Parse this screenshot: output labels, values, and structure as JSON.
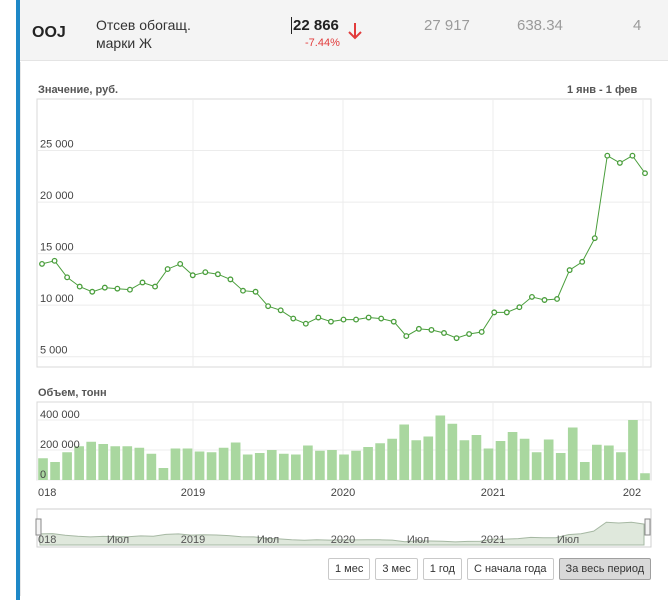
{
  "row": {
    "ticker": "OOJ",
    "name_line1": "Отсев обогащ.",
    "name_line2": "марки Ж",
    "price": "22 866",
    "change": "-7.44%",
    "col1": "27 917",
    "col2": "638.34",
    "col3": "4",
    "down_color": "#e23b3b",
    "arrow_icon": "arrow-down-icon"
  },
  "panel": {
    "price_label": "Значение, руб.",
    "range_label": "1 янв - 1 фев",
    "volume_label": "Объем, тонн"
  },
  "navigator_labels": [
    "018",
    "Июл",
    "2019",
    "Июл",
    "2020",
    "Июл",
    "2021",
    "Июл"
  ],
  "buttons": [
    {
      "label": "1 мес",
      "active": false
    },
    {
      "label": "3 мес",
      "active": false
    },
    {
      "label": "1 год",
      "active": false
    },
    {
      "label": "С начала года",
      "active": false
    },
    {
      "label": "За весь период",
      "active": true
    }
  ],
  "chart_data": [
    {
      "type": "line",
      "ylabel": "Значение, руб.",
      "ylim": [
        4000,
        30000
      ],
      "y_ticks": [
        "5 000",
        "10 000",
        "15 000",
        "20 000",
        "25 000"
      ],
      "x_ticks": [
        "018",
        "2019",
        "2020",
        "2021",
        "202"
      ],
      "series": [
        {
          "values": [
            14000,
            14300,
            12700,
            11800,
            11300,
            11700,
            11600,
            11500,
            12200,
            11800,
            13500,
            14000,
            12900,
            13200,
            13000,
            12500,
            11400,
            11300,
            9900,
            9500,
            8700,
            8200,
            8800,
            8400,
            8600,
            8600,
            8800,
            8700,
            8400,
            7000,
            7700,
            7600,
            7300,
            6800,
            7200,
            7400,
            9300,
            9300,
            9800,
            10800,
            10500,
            10600,
            13400,
            14200,
            16500,
            24500,
            23800,
            24500,
            22800
          ]
        }
      ],
      "color": "#4a9e3c"
    },
    {
      "type": "bar",
      "ylabel": "Объем, тонн",
      "ylim": [
        0,
        520000
      ],
      "y_ticks": [
        "0",
        "200 000",
        "400 000"
      ],
      "x_ticks": [
        "018",
        "2019",
        "2020",
        "2021",
        "202"
      ],
      "series": [
        {
          "values": [
            145000,
            120000,
            185000,
            225000,
            255000,
            240000,
            225000,
            225000,
            215000,
            175000,
            80000,
            210000,
            210000,
            190000,
            185000,
            215000,
            250000,
            170000,
            180000,
            200000,
            175000,
            170000,
            230000,
            195000,
            200000,
            170000,
            195000,
            220000,
            245000,
            275000,
            370000,
            265000,
            290000,
            430000,
            375000,
            265000,
            300000,
            210000,
            260000,
            320000,
            275000,
            185000,
            270000,
            180000,
            350000,
            120000,
            235000,
            230000,
            185000,
            400000,
            45000
          ]
        }
      ],
      "color": "#a9d79f"
    }
  ]
}
